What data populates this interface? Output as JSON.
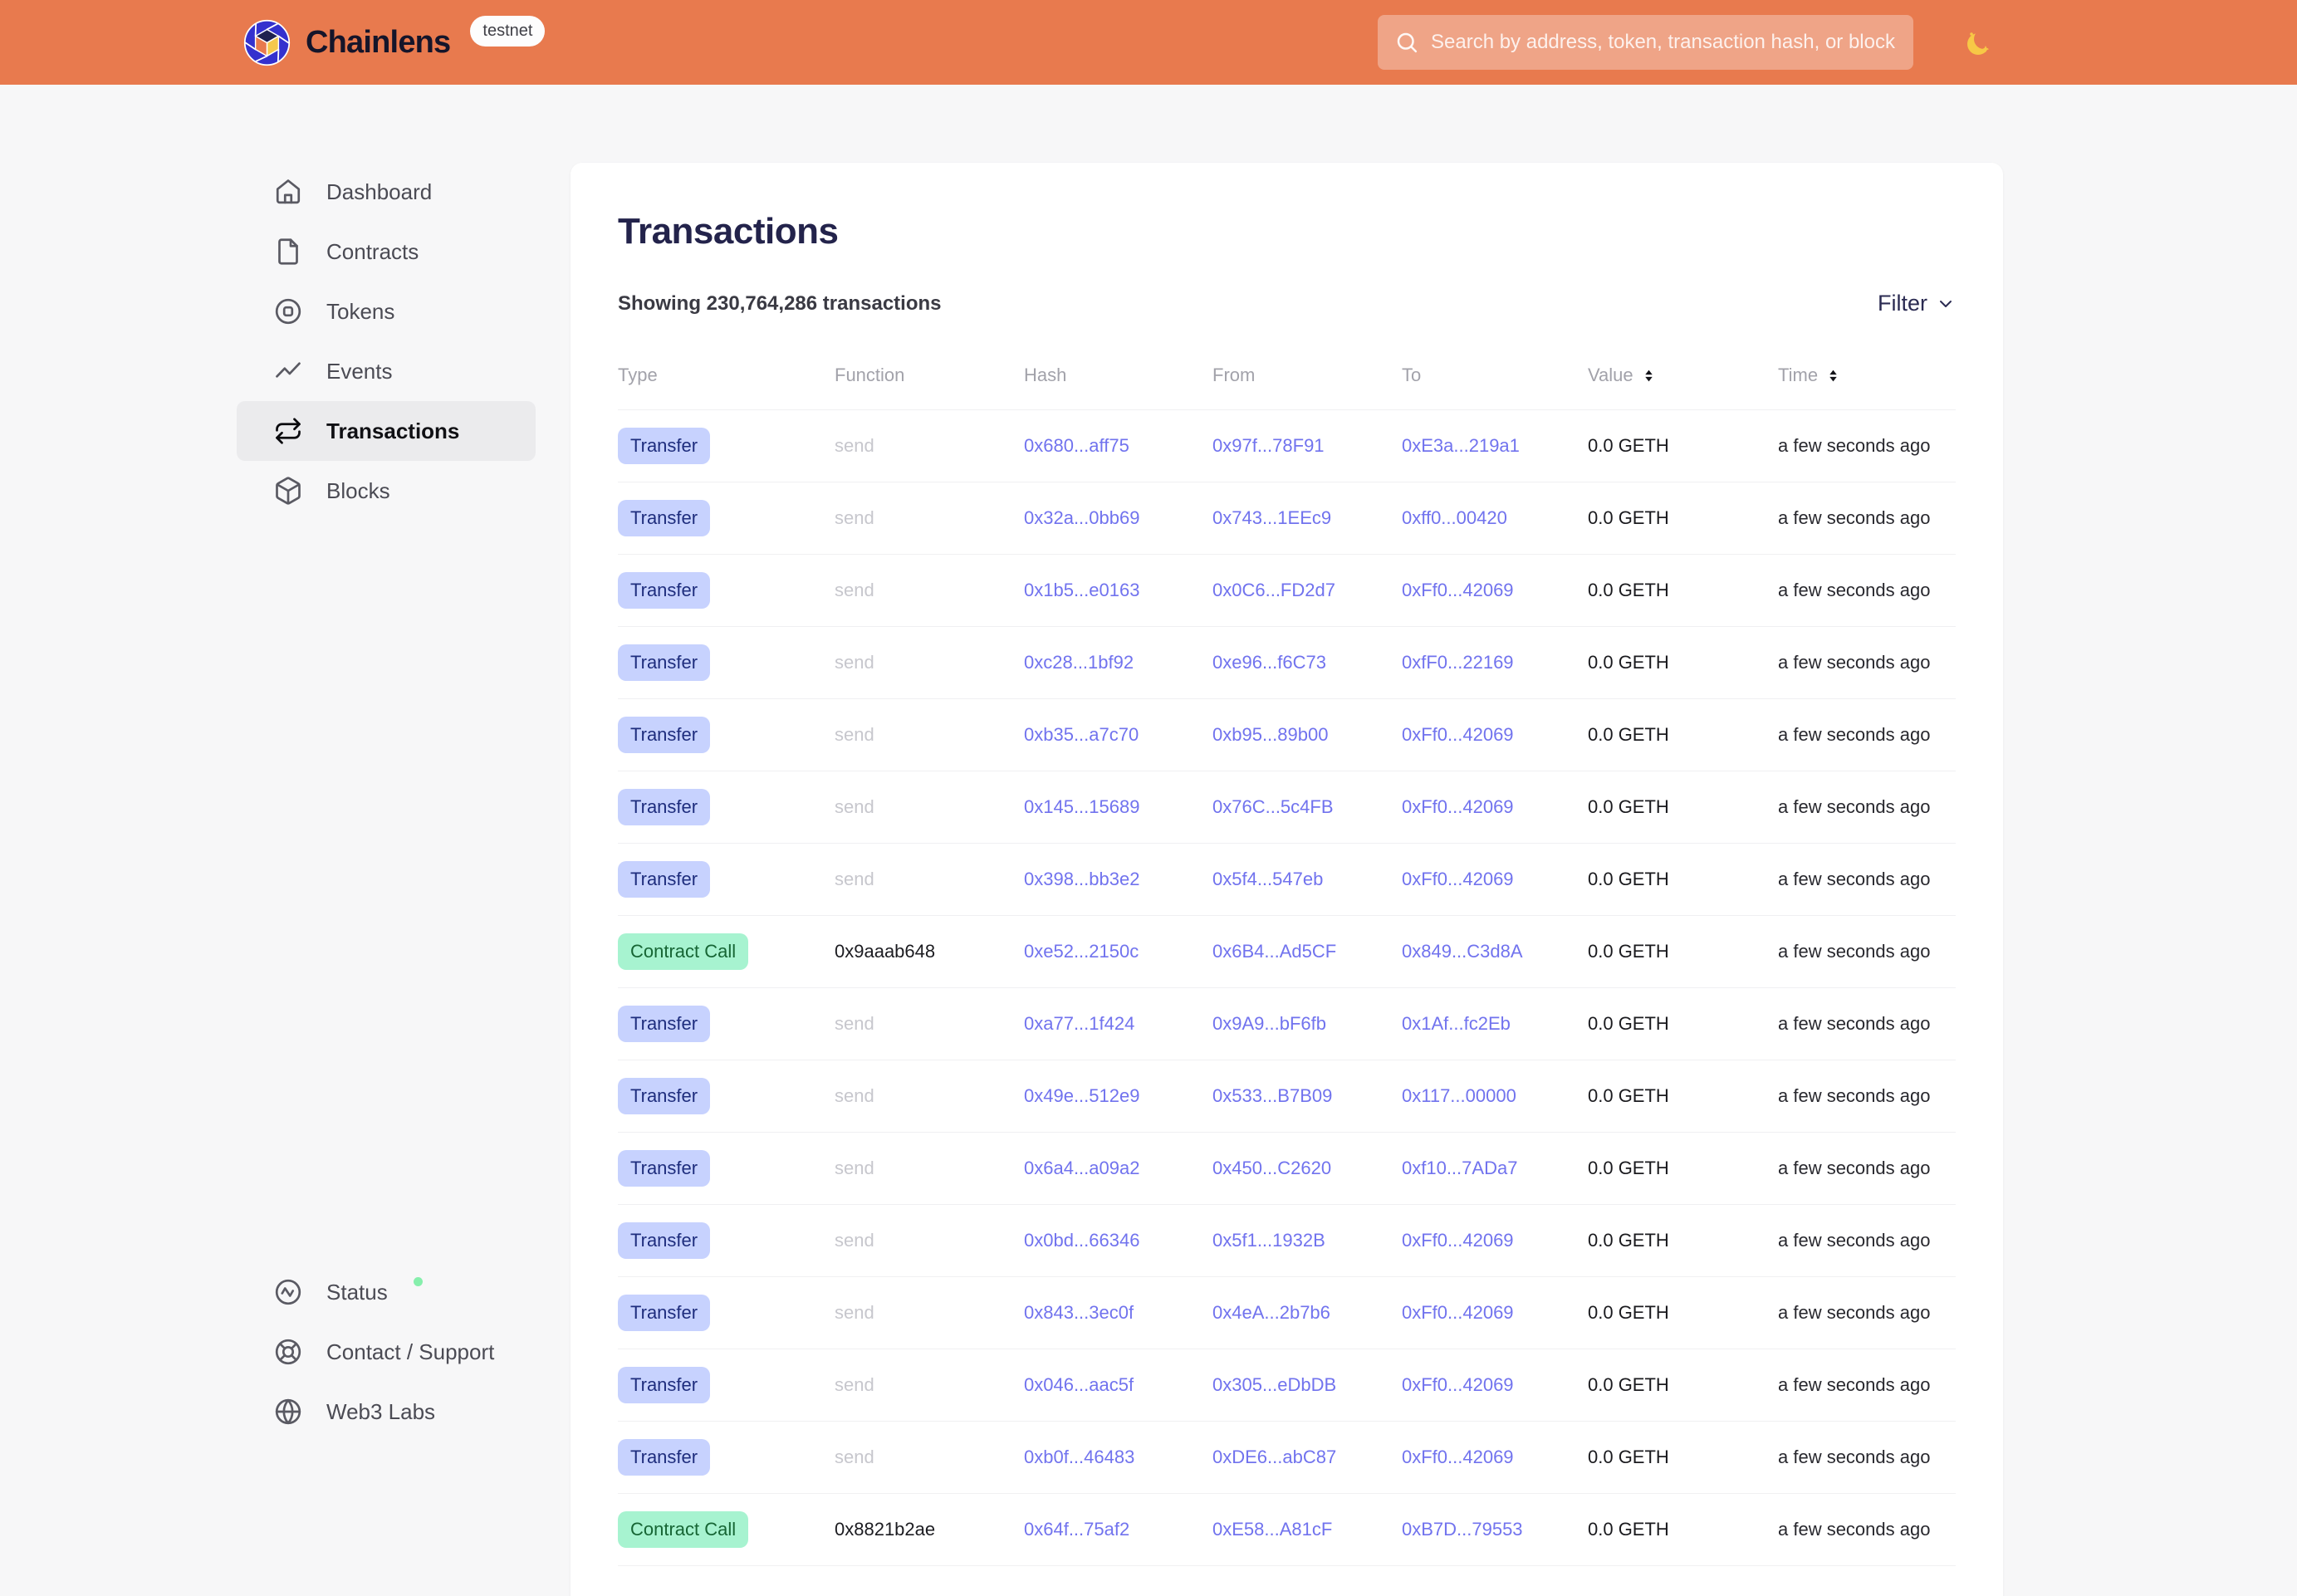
{
  "header": {
    "brand": "Chainlens",
    "network_badge": "testnet",
    "search_placeholder": "Search by address, token, transaction hash, or block number"
  },
  "sidebar": {
    "items": [
      {
        "label": "Dashboard",
        "icon": "home",
        "active": false
      },
      {
        "label": "Contracts",
        "icon": "file",
        "active": false
      },
      {
        "label": "Tokens",
        "icon": "token",
        "active": false
      },
      {
        "label": "Events",
        "icon": "trend",
        "active": false
      },
      {
        "label": "Transactions",
        "icon": "repeat",
        "active": true
      },
      {
        "label": "Blocks",
        "icon": "cube",
        "active": false
      }
    ],
    "footer_items": [
      {
        "label": "Status",
        "icon": "activity",
        "status_dot": true
      },
      {
        "label": "Contact / Support",
        "icon": "lifebuoy",
        "status_dot": false
      },
      {
        "label": "Web3 Labs",
        "icon": "globe",
        "status_dot": false
      }
    ]
  },
  "main": {
    "title": "Transactions",
    "summary": "Showing 230,764,286 transactions",
    "filter_label": "Filter",
    "table": {
      "columns": [
        {
          "label": "Type",
          "sortable": false
        },
        {
          "label": "Function",
          "sortable": false
        },
        {
          "label": "Hash",
          "sortable": false
        },
        {
          "label": "From",
          "sortable": false
        },
        {
          "label": "To",
          "sortable": false
        },
        {
          "label": "Value",
          "sortable": true
        },
        {
          "label": "Time",
          "sortable": true
        }
      ],
      "rows": [
        {
          "type": "Transfer",
          "function": "send",
          "hash": "0x680...aff75",
          "from": "0x97f...78F91",
          "to": "0xE3a...219a1",
          "value": "0.0 GETH",
          "time": "a few seconds ago"
        },
        {
          "type": "Transfer",
          "function": "send",
          "hash": "0x32a...0bb69",
          "from": "0x743...1EEc9",
          "to": "0xff0...00420",
          "value": "0.0 GETH",
          "time": "a few seconds ago"
        },
        {
          "type": "Transfer",
          "function": "send",
          "hash": "0x1b5...e0163",
          "from": "0x0C6...FD2d7",
          "to": "0xFf0...42069",
          "value": "0.0 GETH",
          "time": "a few seconds ago"
        },
        {
          "type": "Transfer",
          "function": "send",
          "hash": "0xc28...1bf92",
          "from": "0xe96...f6C73",
          "to": "0xfF0...22169",
          "value": "0.0 GETH",
          "time": "a few seconds ago"
        },
        {
          "type": "Transfer",
          "function": "send",
          "hash": "0xb35...a7c70",
          "from": "0xb95...89b00",
          "to": "0xFf0...42069",
          "value": "0.0 GETH",
          "time": "a few seconds ago"
        },
        {
          "type": "Transfer",
          "function": "send",
          "hash": "0x145...15689",
          "from": "0x76C...5c4FB",
          "to": "0xFf0...42069",
          "value": "0.0 GETH",
          "time": "a few seconds ago"
        },
        {
          "type": "Transfer",
          "function": "send",
          "hash": "0x398...bb3e2",
          "from": "0x5f4...547eb",
          "to": "0xFf0...42069",
          "value": "0.0 GETH",
          "time": "a few seconds ago"
        },
        {
          "type": "Contract Call",
          "function": "0x9aaab648",
          "hash": "0xe52...2150c",
          "from": "0x6B4...Ad5CF",
          "to": "0x849...C3d8A",
          "value": "0.0 GETH",
          "time": "a few seconds ago"
        },
        {
          "type": "Transfer",
          "function": "send",
          "hash": "0xa77...1f424",
          "from": "0x9A9...bF6fb",
          "to": "0x1Af...fc2Eb",
          "value": "0.0 GETH",
          "time": "a few seconds ago"
        },
        {
          "type": "Transfer",
          "function": "send",
          "hash": "0x49e...512e9",
          "from": "0x533...B7B09",
          "to": "0x117...00000",
          "value": "0.0 GETH",
          "time": "a few seconds ago"
        },
        {
          "type": "Transfer",
          "function": "send",
          "hash": "0x6a4...a09a2",
          "from": "0x450...C2620",
          "to": "0xf10...7ADa7",
          "value": "0.0 GETH",
          "time": "a few seconds ago"
        },
        {
          "type": "Transfer",
          "function": "send",
          "hash": "0x0bd...66346",
          "from": "0x5f1...1932B",
          "to": "0xFf0...42069",
          "value": "0.0 GETH",
          "time": "a few seconds ago"
        },
        {
          "type": "Transfer",
          "function": "send",
          "hash": "0x843...3ec0f",
          "from": "0x4eA...2b7b6",
          "to": "0xFf0...42069",
          "value": "0.0 GETH",
          "time": "a few seconds ago"
        },
        {
          "type": "Transfer",
          "function": "send",
          "hash": "0x046...aac5f",
          "from": "0x305...eDbDB",
          "to": "0xFf0...42069",
          "value": "0.0 GETH",
          "time": "a few seconds ago"
        },
        {
          "type": "Transfer",
          "function": "send",
          "hash": "0xb0f...46483",
          "from": "0xDE6...abC87",
          "to": "0xFf0...42069",
          "value": "0.0 GETH",
          "time": "a few seconds ago"
        },
        {
          "type": "Contract Call",
          "function": "0x8821b2ae",
          "hash": "0x64f...75af2",
          "from": "0xE58...A81cF",
          "to": "0xB7D...79553",
          "value": "0.0 GETH",
          "time": "a few seconds ago"
        }
      ]
    }
  },
  "colors": {
    "header_bg": "#E87A4E",
    "link": "#7173EE",
    "badge_transfer_bg": "#C7D2FE",
    "badge_transfer_text": "#1E2D7D",
    "badge_contract_bg": "#A7F3D0",
    "badge_contract_text": "#166534",
    "status_dot": "#86EFAC",
    "title": "#23234B"
  }
}
